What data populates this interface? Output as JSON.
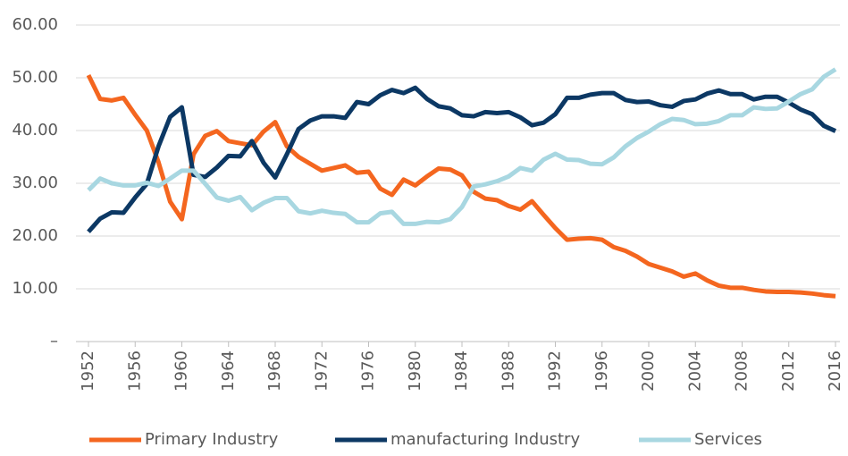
{
  "chart_data": {
    "type": "line",
    "x": [
      1952,
      1953,
      1954,
      1955,
      1956,
      1957,
      1958,
      1959,
      1960,
      1961,
      1962,
      1963,
      1964,
      1965,
      1966,
      1967,
      1968,
      1969,
      1970,
      1971,
      1972,
      1973,
      1974,
      1975,
      1976,
      1977,
      1978,
      1979,
      1980,
      1981,
      1982,
      1983,
      1984,
      1985,
      1986,
      1987,
      1988,
      1989,
      1990,
      1991,
      1992,
      1993,
      1994,
      1995,
      1996,
      1997,
      1998,
      1999,
      2000,
      2001,
      2002,
      2003,
      2004,
      2005,
      2006,
      2007,
      2008,
      2009,
      2010,
      2011,
      2012,
      2013,
      2014,
      2015,
      2016
    ],
    "series": [
      {
        "name": "Primary Industry",
        "color": "#f4661f",
        "values": [
          50.5,
          46,
          45.7,
          46.2,
          43,
          40,
          34,
          26.5,
          23.2,
          35.5,
          39,
          39.9,
          38,
          37.6,
          37.2,
          39.8,
          41.6,
          37,
          35,
          33.7,
          32.4,
          32.9,
          33.4,
          32,
          32.2,
          29,
          27.8,
          30.7,
          29.6,
          31.3,
          32.8,
          32.6,
          31.5,
          28.4,
          27.1,
          26.8,
          25.7,
          25,
          26.6,
          24,
          21.5,
          19.3,
          19.5,
          19.6,
          19.3,
          17.9,
          17.2,
          16.1,
          14.7,
          14,
          13.3,
          12.3,
          12.9,
          11.6,
          10.6,
          10.2,
          10.2,
          9.8,
          9.5,
          9.4,
          9.4,
          9.3,
          9.1,
          8.8,
          8.6
        ]
      },
      {
        "name": "manufacturing Industry",
        "color": "#0c3864",
        "values": [
          20.8,
          23.3,
          24.5,
          24.4,
          27.3,
          29.9,
          37,
          42.6,
          44.4,
          31.6,
          31.2,
          33,
          35.2,
          35.1,
          38,
          33.9,
          31.1,
          35.5,
          40.3,
          41.9,
          42.7,
          42.7,
          42.4,
          45.4,
          45,
          46.7,
          47.7,
          47.1,
          48.1,
          46,
          44.6,
          44.2,
          42.9,
          42.7,
          43.5,
          43.3,
          43.5,
          42.5,
          41,
          41.5,
          43.1,
          46.2,
          46.2,
          46.8,
          47.1,
          47.1,
          45.8,
          45.4,
          45.5,
          44.8,
          44.5,
          45.6,
          45.9,
          47,
          47.6,
          46.9,
          46.9,
          45.9,
          46.4,
          46.4,
          45.3,
          44,
          43.1,
          40.9,
          39.9
        ]
      },
      {
        "name": "Services",
        "color": "#a8d7e1",
        "values": [
          28.7,
          30.9,
          30,
          29.6,
          29.6,
          30.1,
          29.5,
          30.9,
          32.4,
          32.4,
          29.9,
          27.3,
          26.7,
          27.4,
          24.9,
          26.3,
          27.2,
          27.2,
          24.7,
          24.3,
          24.8,
          24.4,
          24.2,
          22.6,
          22.6,
          24.3,
          24.6,
          22.3,
          22.3,
          22.7,
          22.6,
          23.2,
          25.5,
          29.4,
          29.8,
          30.4,
          31.3,
          32.9,
          32.4,
          34.5,
          35.6,
          34.5,
          34.4,
          33.7,
          33.6,
          34.9,
          37,
          38.6,
          39.8,
          41.2,
          42.2,
          42,
          41.2,
          41.3,
          41.8,
          42.9,
          42.9,
          44.4,
          44.1,
          44.2,
          45.5,
          46.9,
          47.8,
          50.2,
          51.6
        ]
      }
    ],
    "xlim": [
      1952,
      2016
    ],
    "xticks": [
      1952,
      1956,
      1960,
      1964,
      1968,
      1972,
      1976,
      1980,
      1984,
      1988,
      1992,
      1996,
      2000,
      2004,
      2008,
      2012,
      2016
    ],
    "ylim": [
      0,
      60
    ],
    "yticks": [
      {
        "value": 0,
        "label": "–"
      },
      {
        "value": 10,
        "label": "10.00"
      },
      {
        "value": 20,
        "label": "20.00"
      },
      {
        "value": 30,
        "label": "30.00"
      },
      {
        "value": 40,
        "label": "40.00"
      },
      {
        "value": 50,
        "label": "50.00"
      },
      {
        "value": 60,
        "label": "60.00"
      }
    ],
    "grid": true,
    "legend": "bottom"
  }
}
